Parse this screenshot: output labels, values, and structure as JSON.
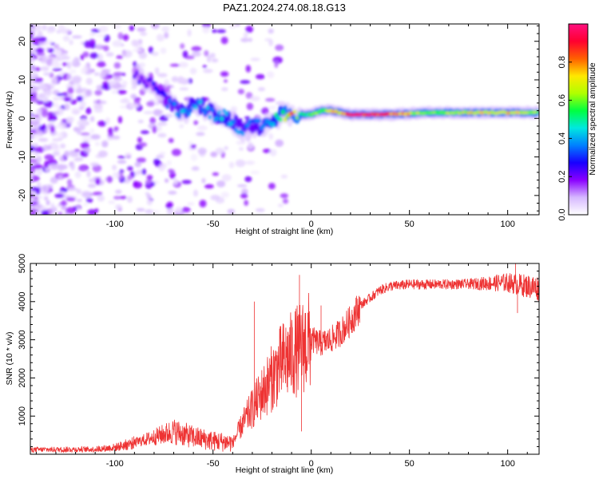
{
  "title": "PAZ1.2024.274.08.18.G13",
  "chart_data": [
    {
      "type": "heatmap",
      "xlabel": "Height of straight line (km)",
      "ylabel": "Frequency (Hz)",
      "xlim": [
        -143,
        116
      ],
      "ylim": [
        -25,
        24.5
      ],
      "x_ticks": [
        -100,
        -50,
        0,
        50,
        100
      ],
      "y_ticks": [
        -20,
        -10,
        0,
        10,
        20
      ],
      "colorbar": {
        "label": "Normalized spectral amplitude",
        "range": [
          0,
          1
        ],
        "ticks": [
          "0.0",
          "0.2",
          "0.4",
          "0.6",
          "0.8"
        ],
        "colors": [
          "#ffffff",
          "#d6b8ff",
          "#8a00ff",
          "#1800ff",
          "#0080ff",
          "#00e8e0",
          "#00ff40",
          "#b0ff00",
          "#ffe800",
          "#ff6000",
          "#ff0030",
          "#ff1080"
        ]
      },
      "ridge": {
        "x": [
          -90,
          -80,
          -75,
          -70,
          -65,
          -60,
          -55,
          -50,
          -45,
          -40,
          -35,
          -30,
          -25,
          -20,
          -15,
          -10,
          -5,
          0,
          5,
          10,
          15,
          20,
          40,
          60,
          80,
          100,
          116
        ],
        "y": [
          11,
          9,
          5,
          3,
          1,
          4,
          3,
          1,
          1,
          -1,
          -3,
          -2,
          -2,
          -1,
          1,
          1,
          1,
          1,
          2,
          2,
          1.5,
          1,
          1,
          1.5,
          1.5,
          1.5,
          1.5
        ],
        "amplitude": [
          0.2,
          0.25,
          0.3,
          0.35,
          0.4,
          0.4,
          0.4,
          0.4,
          0.45,
          0.4,
          0.35,
          0.35,
          0.4,
          0.45,
          0.5,
          0.9,
          0.5,
          0.6,
          0.6,
          0.75,
          0.7,
          0.95,
          0.9,
          0.55,
          0.7,
          0.75,
          0.6
        ]
      }
    },
    {
      "type": "line",
      "xlabel": "Height of straight line (km)",
      "ylabel": "SNR (10 * v/v)",
      "xlim": [
        -143,
        116
      ],
      "ylim": [
        0,
        5000
      ],
      "x_ticks": [
        -100,
        -50,
        0,
        50,
        100
      ],
      "y_ticks": [
        1000,
        2000,
        3000,
        4000,
        5000
      ],
      "color": "#ee3333",
      "envelope": {
        "x": [
          -143,
          -110,
          -100,
          -90,
          -80,
          -70,
          -60,
          -50,
          -40,
          -35,
          -30,
          -25,
          -20,
          -15,
          -10,
          -5,
          0,
          5,
          10,
          15,
          20,
          25,
          30,
          35,
          40,
          50,
          60,
          80,
          100,
          116
        ],
        "y": [
          120,
          130,
          180,
          300,
          450,
          600,
          450,
          350,
          300,
          800,
          1200,
          1600,
          2000,
          2400,
          2600,
          2800,
          3000,
          2900,
          3000,
          3200,
          3500,
          3900,
          4100,
          4300,
          4400,
          4450,
          4450,
          4460,
          4500,
          4350
        ]
      },
      "spikes": [
        {
          "x": -29,
          "y": 4000
        },
        {
          "x": -6,
          "y": 4700
        },
        {
          "x": -5,
          "y": 600
        },
        {
          "x": 5,
          "y": 3900
        },
        {
          "x": 104,
          "y": 5000
        },
        {
          "x": 105,
          "y": 3700
        }
      ]
    }
  ]
}
